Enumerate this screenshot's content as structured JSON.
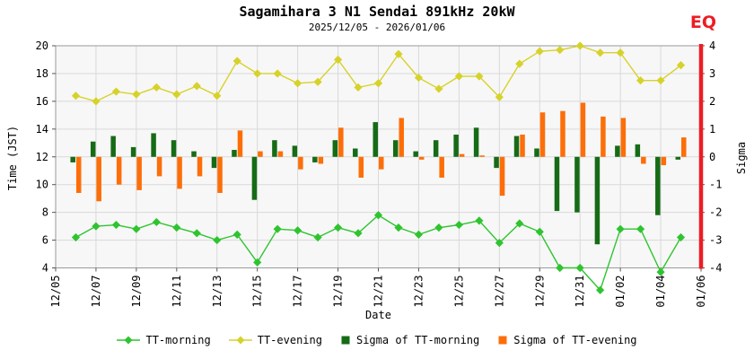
{
  "chart": {
    "title": "Sagamihara 3 N1 Sendai 891kHz 20kW",
    "subtitle": "2025/12/05 - 2026/01/06",
    "eq_label": "EQ",
    "xlabel": "Date",
    "ylabel_left": "Time (JST)",
    "ylabel_right": "Sigma"
  },
  "colors": {
    "tt_morning": "#2fc42f",
    "tt_evening": "#d6d22a",
    "sigma_morning": "#166b16",
    "sigma_evening": "#fd6e08",
    "eq": "#ed1c24",
    "plot_bg": "#f7f7f7",
    "grid": "#d9d9d9",
    "border": "#9a9a9a"
  },
  "chart_data": {
    "type": "line+bar",
    "title": "Sagamihara 3 N1 Sendai 891kHz 20kW",
    "subtitle": "2025/12/05 - 2026/01/06",
    "xlabel": "Date",
    "ylabel_left": "Time (JST)",
    "ylabel_right": "Sigma",
    "x_axis_start": "12/05",
    "x_axis_end": "01/06",
    "x_axis_span_days": 32,
    "x_tick_labels": [
      "12/05",
      "12/07",
      "12/09",
      "12/11",
      "12/13",
      "12/15",
      "12/17",
      "12/19",
      "12/21",
      "12/23",
      "12/25",
      "12/27",
      "12/29",
      "12/31",
      "01/02",
      "01/04",
      "01/06"
    ],
    "ylim_left": [
      4,
      20
    ],
    "yticks_left": [
      20,
      18,
      16,
      14,
      12,
      10,
      8,
      6,
      4
    ],
    "ylim_right": [
      -4,
      4
    ],
    "yticks_right": [
      4,
      3,
      2,
      1,
      0,
      -1,
      -2,
      -3,
      -4
    ],
    "grid": true,
    "legend_position": "bottom",
    "dates": [
      "12/06",
      "12/07",
      "12/08",
      "12/09",
      "12/10",
      "12/11",
      "12/12",
      "12/13",
      "12/14",
      "12/15",
      "12/16",
      "12/17",
      "12/18",
      "12/19",
      "12/20",
      "12/21",
      "12/22",
      "12/23",
      "12/24",
      "12/25",
      "12/26",
      "12/27",
      "12/28",
      "12/29",
      "12/30",
      "12/31",
      "01/01",
      "01/02",
      "01/03",
      "01/04",
      "01/05"
    ],
    "series": [
      {
        "name": "TT-morning",
        "type": "line",
        "axis": "left",
        "color_key": "tt_morning",
        "values": [
          6.2,
          7.0,
          7.1,
          6.8,
          7.3,
          6.9,
          6.5,
          6.0,
          6.4,
          4.4,
          6.8,
          6.7,
          6.2,
          6.9,
          6.5,
          7.8,
          6.9,
          6.4,
          6.9,
          7.1,
          7.4,
          5.8,
          7.2,
          6.6,
          4.0,
          4.0,
          2.4,
          6.8,
          6.8,
          3.7,
          6.2
        ]
      },
      {
        "name": "TT-evening",
        "type": "line",
        "axis": "left",
        "color_key": "tt_evening",
        "values": [
          16.4,
          16.0,
          16.7,
          16.5,
          17.0,
          16.5,
          17.1,
          16.4,
          18.9,
          18.0,
          18.0,
          17.3,
          17.4,
          19.0,
          17.0,
          17.3,
          19.4,
          17.7,
          16.9,
          17.8,
          17.8,
          16.3,
          18.7,
          19.6,
          19.7,
          20.0,
          19.5,
          19.5,
          17.5,
          17.5,
          18.6
        ]
      },
      {
        "name": "Sigma of TT-morning",
        "type": "bar",
        "axis": "right",
        "color_key": "sigma_morning",
        "values": [
          -0.2,
          0.55,
          0.75,
          0.35,
          0.85,
          0.6,
          0.2,
          -0.4,
          0.25,
          -1.55,
          0.6,
          0.4,
          -0.2,
          0.6,
          0.3,
          1.25,
          0.6,
          0.2,
          0.6,
          0.8,
          1.05,
          -0.4,
          0.75,
          0.3,
          -1.95,
          -2.0,
          -3.15,
          0.4,
          0.45,
          -2.1,
          -0.1
        ]
      },
      {
        "name": "Sigma of TT-evening",
        "type": "bar",
        "axis": "right",
        "color_key": "sigma_evening",
        "values": [
          -1.3,
          -1.6,
          -1.0,
          -1.2,
          -0.7,
          -1.15,
          -0.7,
          -1.3,
          0.95,
          0.2,
          0.2,
          -0.45,
          -0.25,
          1.05,
          -0.75,
          -0.45,
          1.4,
          -0.1,
          -0.75,
          0.1,
          0.05,
          -1.4,
          0.8,
          1.6,
          1.65,
          1.95,
          1.45,
          1.4,
          -0.25,
          -0.3,
          0.7
        ]
      }
    ],
    "eq_marker": {
      "label": "EQ",
      "date": "01/06"
    }
  }
}
